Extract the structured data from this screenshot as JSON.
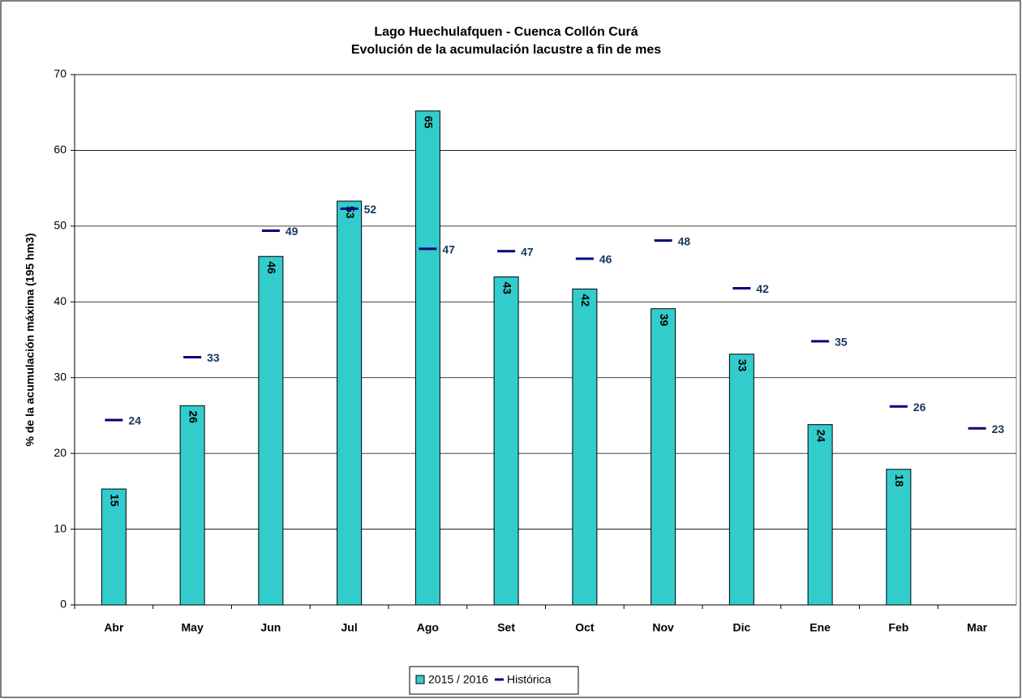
{
  "chart_data": {
    "type": "bar",
    "title": [
      "Lago Huechulafquen - Cuenca Collón Curá",
      "Evolución de la acumulación lacustre a fin de mes"
    ],
    "ylabel": "% de la acumulación máxima (195 hm3)",
    "categories": [
      "Abr",
      "May",
      "Jun",
      "Jul",
      "Ago",
      "Set",
      "Oct",
      "Nov",
      "Dic",
      "Ene",
      "Feb",
      "Mar"
    ],
    "series": [
      {
        "name": "2015 / 2016",
        "type": "bar",
        "color": "#33cccc",
        "values": [
          15.3,
          26.3,
          46.0,
          53.3,
          65.2,
          43.3,
          41.7,
          39.1,
          33.1,
          23.8,
          17.9,
          null
        ],
        "value_labels": [
          "15",
          "26",
          "46",
          "53",
          "65",
          "43",
          "42",
          "39",
          "33",
          "24",
          "18",
          null
        ]
      },
      {
        "name": "Histórica",
        "type": "dash",
        "color": "#000080",
        "values": [
          24.4,
          32.7,
          49.4,
          52.3,
          47.0,
          46.7,
          45.7,
          48.1,
          41.8,
          34.8,
          26.2,
          23.3
        ],
        "value_labels": [
          "24",
          "33",
          "49",
          "52",
          "47",
          "47",
          "46",
          "48",
          "42",
          "35",
          "26",
          "23"
        ]
      }
    ],
    "ylim": [
      0,
      70
    ],
    "yticks": [
      0,
      10,
      20,
      30,
      40,
      50,
      60,
      70
    ],
    "grid": true,
    "legend": "bottom"
  }
}
